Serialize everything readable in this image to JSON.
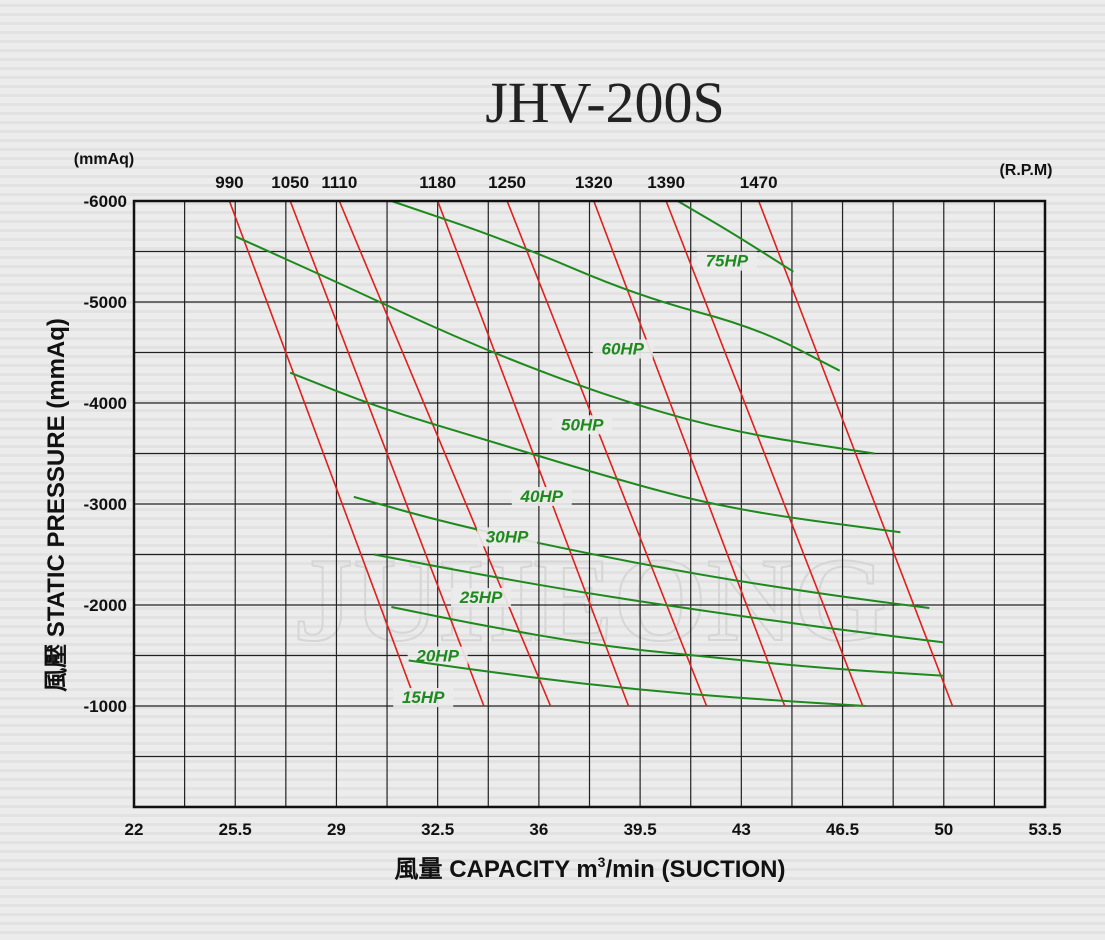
{
  "chart_data": {
    "type": "line",
    "title": "JHV-200S",
    "watermark": "JUHEONG",
    "y_unit_top": "(mmAq)",
    "rpm_unit": "(R.P.M)",
    "ylabel": "風壓  STATIC  PRESSURE  (mmAq)",
    "xlabel_prefix": "風量  CAPACITY  m",
    "xlabel_sup": "3",
    "xlabel_suffix": "/min (SUCTION)",
    "x_ticks": [
      22,
      25.5,
      29,
      32.5,
      36,
      39.5,
      43,
      46.5,
      50,
      53.5
    ],
    "x_tick_labels": [
      "22",
      "25.5",
      "29",
      "32.5",
      "36",
      "39.5",
      "43",
      "46.5",
      "50",
      "53.5"
    ],
    "xlim": [
      22,
      53.5
    ],
    "y_ticks": [
      -6000,
      -5000,
      -4000,
      -3000,
      -2000,
      -1000
    ],
    "y_tick_labels": [
      "-6000",
      "-5000",
      "-4000",
      "-3000",
      "-2000",
      "-1000"
    ],
    "ylim": [
      -6000,
      0
    ],
    "grid": true,
    "line_colors": {
      "rpm": "#e0201c",
      "hp": "#1e8a1e"
    },
    "rpm_series": [
      {
        "name": "990",
        "points": [
          [
            25.3,
            -6000
          ],
          [
            31.8,
            -1000
          ]
        ]
      },
      {
        "name": "1050",
        "points": [
          [
            27.4,
            -6000
          ],
          [
            34.1,
            -1000
          ]
        ]
      },
      {
        "name": "1110",
        "points": [
          [
            29.1,
            -6000
          ],
          [
            36.4,
            -1000
          ]
        ]
      },
      {
        "name": "1180",
        "points": [
          [
            32.5,
            -6000
          ],
          [
            39.1,
            -1000
          ]
        ]
      },
      {
        "name": "1250",
        "points": [
          [
            34.9,
            -6000
          ],
          [
            41.8,
            -1000
          ]
        ]
      },
      {
        "name": "1320",
        "points": [
          [
            37.9,
            -6000
          ],
          [
            44.5,
            -1000
          ]
        ]
      },
      {
        "name": "1390",
        "points": [
          [
            40.4,
            -6000
          ],
          [
            47.2,
            -1000
          ]
        ]
      },
      {
        "name": "1470",
        "points": [
          [
            43.6,
            -6000
          ],
          [
            50.3,
            -1000
          ]
        ]
      }
    ],
    "hp_series": [
      {
        "name": "75HP",
        "label_at": [
          42.5,
          -5350
        ],
        "points": [
          [
            40.8,
            -6000
          ],
          [
            42.6,
            -5700
          ],
          [
            44.8,
            -5300
          ]
        ]
      },
      {
        "name": "60HP",
        "label_at": [
          38.9,
          -4480
        ],
        "points": [
          [
            30.9,
            -6000
          ],
          [
            35.0,
            -5600
          ],
          [
            39.5,
            -5050
          ],
          [
            43.5,
            -4750
          ],
          [
            46.4,
            -4320
          ]
        ]
      },
      {
        "name": "50HP",
        "label_at": [
          37.5,
          -3730
        ],
        "points": [
          [
            25.5,
            -5650
          ],
          [
            29.0,
            -5200
          ],
          [
            33.5,
            -4600
          ],
          [
            38.0,
            -4100
          ],
          [
            42.5,
            -3720
          ],
          [
            47.6,
            -3500
          ]
        ]
      },
      {
        "name": "40HP",
        "label_at": [
          36.1,
          -3020
        ],
        "points": [
          [
            27.4,
            -4300
          ],
          [
            30.5,
            -3950
          ],
          [
            34.0,
            -3650
          ],
          [
            38.0,
            -3300
          ],
          [
            42.5,
            -2950
          ],
          [
            48.5,
            -2720
          ]
        ]
      },
      {
        "name": "30HP",
        "label_at": [
          34.9,
          -2620
        ],
        "points": [
          [
            29.6,
            -3070
          ],
          [
            33.0,
            -2800
          ],
          [
            37.0,
            -2550
          ],
          [
            41.5,
            -2300
          ],
          [
            46.0,
            -2100
          ],
          [
            49.5,
            -1970
          ]
        ]
      },
      {
        "name": "25HP",
        "label_at": [
          34.0,
          -2020
        ],
        "points": [
          [
            30.3,
            -2500
          ],
          [
            34.0,
            -2300
          ],
          [
            38.0,
            -2100
          ],
          [
            42.0,
            -1930
          ],
          [
            46.0,
            -1770
          ],
          [
            50.0,
            -1630
          ]
        ]
      },
      {
        "name": "20HP",
        "label_at": [
          32.5,
          -1440
        ],
        "points": [
          [
            30.9,
            -1980
          ],
          [
            34.0,
            -1800
          ],
          [
            38.0,
            -1600
          ],
          [
            42.0,
            -1480
          ],
          [
            46.0,
            -1370
          ],
          [
            50.0,
            -1300
          ]
        ]
      },
      {
        "name": "15HP",
        "label_at": [
          32.0,
          -1030
        ],
        "points": [
          [
            31.5,
            -1450
          ],
          [
            34.0,
            -1350
          ],
          [
            37.5,
            -1220
          ],
          [
            41.0,
            -1120
          ],
          [
            44.5,
            -1050
          ],
          [
            47.3,
            -1000
          ]
        ]
      }
    ]
  }
}
